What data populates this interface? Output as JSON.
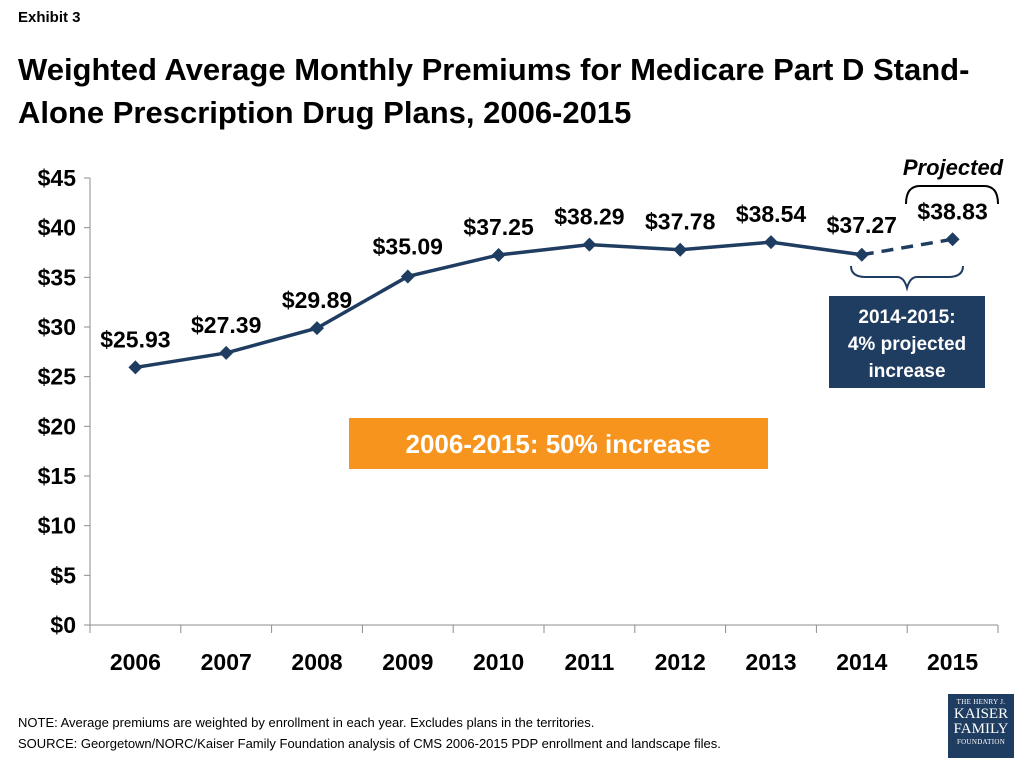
{
  "header": {
    "exhibit": "Exhibit 3",
    "title": "Weighted Average Monthly Premiums for Medicare Part D Stand-Alone Prescription Drug Plans, 2006-2015"
  },
  "chart_data": {
    "type": "line",
    "x": [
      "2006",
      "2007",
      "2008",
      "2009",
      "2010",
      "2011",
      "2012",
      "2013",
      "2014",
      "2015"
    ],
    "series": [
      {
        "values": [
          25.93,
          27.39,
          29.89,
          35.09,
          37.25,
          38.29,
          37.78,
          38.54,
          37.27,
          38.83
        ]
      }
    ],
    "value_labels": [
      "$25.93",
      "$27.39",
      "$29.89",
      "$35.09",
      "$37.25",
      "$38.29",
      "$37.78",
      "$38.54",
      "$37.27",
      "$38.83"
    ],
    "projected_from_index": 8,
    "ylim": [
      0,
      45
    ],
    "y_ticks": [
      "$0",
      "$5",
      "$10",
      "$15",
      "$20",
      "$25",
      "$30",
      "$35",
      "$40",
      "$45"
    ],
    "grid": false,
    "colors": {
      "line": "#1f3c61",
      "orange": "#f7941e",
      "navy": "#1f3c61"
    },
    "annotations": {
      "projected": "Projected",
      "increase_box": "2006-2015:  50% increase",
      "callout_lines": [
        "2014-2015:",
        "4% projected",
        "increase"
      ]
    }
  },
  "footer": {
    "note": "NOTE: Average premiums are weighted by enrollment in each year.  Excludes plans in the territories.",
    "source": "SOURCE: Georgetown/NORC/Kaiser Family Foundation analysis of CMS 2006-2015 PDP enrollment and landscape files.",
    "logo_lines": [
      "THE HENRY J.",
      "KAISER",
      "FAMILY",
      "FOUNDATION"
    ]
  }
}
